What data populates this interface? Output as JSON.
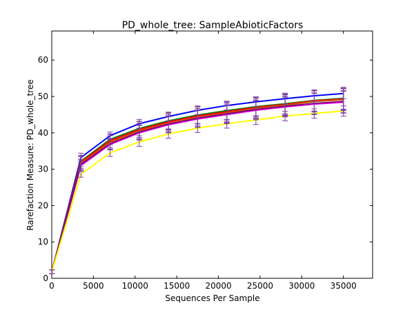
{
  "chart_data": {
    "type": "line",
    "title": "PD_whole_tree: SampleAbioticFactors",
    "xlabel": "Sequences Per Sample",
    "ylabel": "Rarefaction Measure: PD_whole_tree",
    "xlim": [
      0,
      38500
    ],
    "ylim": [
      0,
      68
    ],
    "xticks": [
      0,
      5000,
      10000,
      15000,
      20000,
      25000,
      30000,
      35000
    ],
    "yticks": [
      0,
      10,
      20,
      30,
      40,
      50,
      60
    ],
    "grid": false,
    "legend": "none",
    "x": [
      10,
      3500,
      7000,
      10500,
      14000,
      17500,
      21000,
      24500,
      28000,
      31500,
      35000
    ],
    "series": [
      {
        "color": "#0000ff",
        "values": [
          1.8,
          33.2,
          39.2,
          42.5,
          44.5,
          46.2,
          47.5,
          48.5,
          49.4,
          50.2,
          50.8
        ],
        "error": [
          0.5,
          1.2,
          1.0,
          1.2,
          1.2,
          1.2,
          1.2,
          1.4,
          1.5,
          1.5,
          1.4
        ]
      },
      {
        "color": "#008000",
        "values": [
          1.8,
          32.2,
          38.2,
          41.2,
          43.3,
          44.9,
          46.1,
          47.2,
          48.0,
          48.9,
          49.5
        ],
        "error": [
          0.5,
          1.5,
          1.5,
          2.0,
          2.2,
          2.3,
          2.5,
          2.6,
          2.7,
          2.9,
          3.0
        ]
      },
      {
        "color": "#ff0000",
        "values": [
          1.8,
          32.0,
          37.8,
          40.9,
          43.0,
          44.6,
          45.8,
          47.0,
          47.8,
          48.8,
          49.3
        ],
        "error": [
          0.5,
          1.8,
          1.8,
          2.2,
          2.3,
          2.5,
          2.6,
          2.7,
          2.8,
          2.9,
          3.0
        ]
      },
      {
        "color": "#cc5500",
        "values": [
          1.8,
          31.6,
          37.4,
          40.5,
          42.6,
          44.2,
          45.5,
          46.7,
          47.6,
          48.6,
          49.1
        ],
        "error": [
          0.5,
          1.8,
          1.8,
          2.2,
          2.3,
          2.5,
          2.6,
          2.7,
          2.8,
          2.9,
          3.0
        ]
      },
      {
        "color": "#ff00ff",
        "values": [
          1.8,
          31.0,
          36.8,
          40.0,
          42.2,
          43.8,
          45.0,
          46.2,
          47.1,
          47.9,
          48.4
        ],
        "error": [
          0.5,
          1.5,
          1.5,
          2.0,
          2.2,
          2.3,
          2.5,
          2.6,
          2.7,
          2.9,
          3.0
        ]
      },
      {
        "color": "#800080",
        "values": [
          1.8,
          31.3,
          37.0,
          40.2,
          42.4,
          44.0,
          45.2,
          46.4,
          47.3,
          48.1,
          48.6
        ],
        "error": [
          0.5,
          1.5,
          1.5,
          2.0,
          2.2,
          2.3,
          2.5,
          2.6,
          2.7,
          2.9,
          3.0
        ]
      },
      {
        "color": "#ffff00",
        "values": [
          1.8,
          28.6,
          34.5,
          37.5,
          39.7,
          41.3,
          42.5,
          43.5,
          44.6,
          45.3,
          46.0
        ],
        "error": [
          0.5,
          0.8,
          1.0,
          1.2,
          1.2,
          1.2,
          1.2,
          1.2,
          1.3,
          1.3,
          1.4
        ]
      }
    ],
    "errorbar_color": "#7b3fa0"
  }
}
